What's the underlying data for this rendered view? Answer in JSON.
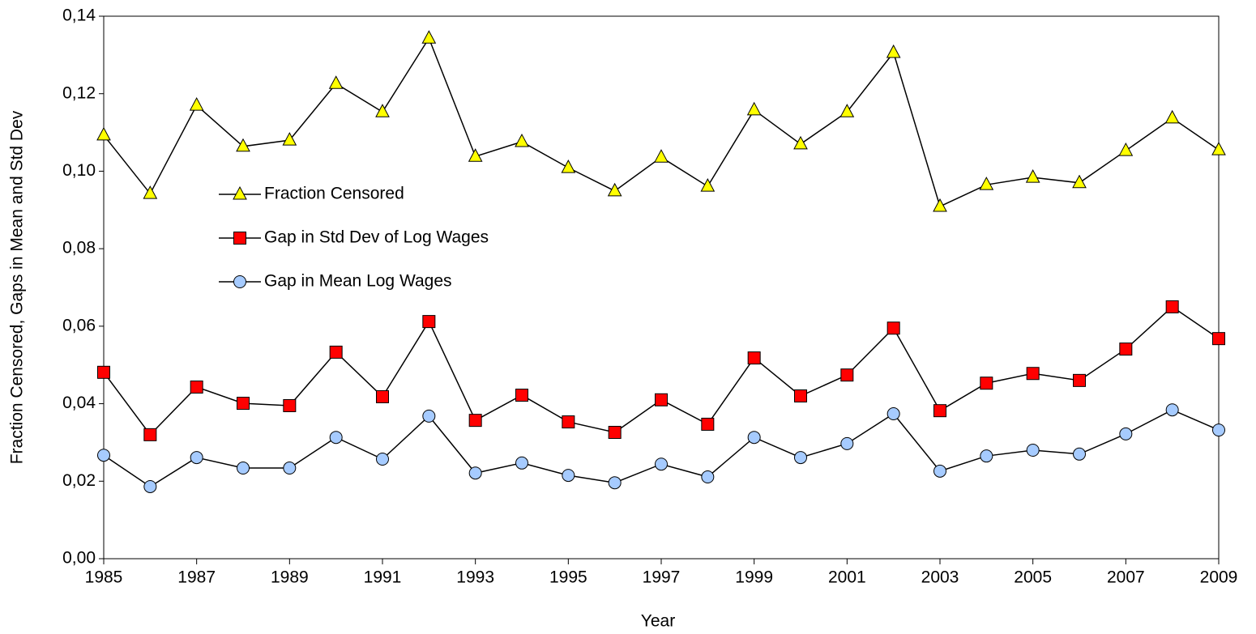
{
  "chart_data": {
    "type": "line",
    "x_label": "Year",
    "y_label": "Fraction Censored, Gaps in Mean and Std Dev",
    "x": [
      1985,
      1986,
      1987,
      1988,
      1989,
      1990,
      1991,
      1992,
      1993,
      1994,
      1995,
      1996,
      1997,
      1998,
      1999,
      2000,
      2001,
      2002,
      2003,
      2004,
      2005,
      2006,
      2007,
      2008,
      2009
    ],
    "xlim": [
      1985,
      2009
    ],
    "xticks": [
      1985,
      1987,
      1989,
      1991,
      1993,
      1995,
      1997,
      1999,
      2001,
      2003,
      2005,
      2007,
      2009
    ],
    "ylim": [
      0,
      0.14
    ],
    "yticks": [
      {
        "value": 0,
        "label": "0,00"
      },
      {
        "value": 0.02,
        "label": "0,02"
      },
      {
        "value": 0.04,
        "label": "0,04"
      },
      {
        "value": 0.06,
        "label": "0,06"
      },
      {
        "value": 0.08,
        "label": "0,08"
      },
      {
        "value": 0.1,
        "label": "0,10"
      },
      {
        "value": 0.12,
        "label": "0,12"
      },
      {
        "value": 0.14,
        "label": "0,14"
      }
    ],
    "grid": false,
    "line_color": "#000000",
    "series": [
      {
        "name": "Fraction Censored",
        "color": "#ffff00",
        "marker": "triangle",
        "values": [
          0.1093,
          0.0942,
          0.117,
          0.1064,
          0.108,
          0.1226,
          0.1153,
          0.1343,
          0.1038,
          0.1076,
          0.1009,
          0.0949,
          0.1036,
          0.0961,
          0.1158,
          0.107,
          0.1153,
          0.1306,
          0.0909,
          0.0965,
          0.0984,
          0.097,
          0.1053,
          0.1137,
          0.1055
        ]
      },
      {
        "name": "Gap in Std Dev of Log Wages",
        "color": "#ff0000",
        "marker": "square",
        "values": [
          0.0481,
          0.032,
          0.0443,
          0.0401,
          0.0395,
          0.0533,
          0.0418,
          0.0612,
          0.0357,
          0.0422,
          0.0353,
          0.0326,
          0.041,
          0.0347,
          0.0518,
          0.042,
          0.0474,
          0.0595,
          0.0382,
          0.0453,
          0.0478,
          0.046,
          0.0541,
          0.065,
          0.0568
        ]
      },
      {
        "name": "Gap in Mean Log Wages",
        "color": "#a6cbff",
        "marker": "circle",
        "values": [
          0.0267,
          0.0186,
          0.0261,
          0.0234,
          0.0234,
          0.0313,
          0.0257,
          0.0368,
          0.0221,
          0.0247,
          0.0215,
          0.0196,
          0.0244,
          0.0211,
          0.0313,
          0.0261,
          0.0297,
          0.0374,
          0.0226,
          0.0265,
          0.028,
          0.027,
          0.0322,
          0.0384,
          0.0332
        ]
      }
    ]
  }
}
